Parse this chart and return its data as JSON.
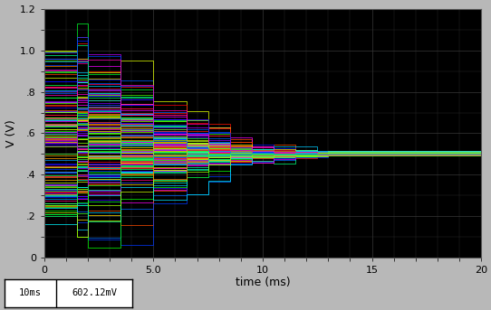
{
  "xlabel": "time (ms)",
  "ylabel": "V (V)",
  "xlim": [
    0,
    20
  ],
  "ylim": [
    0,
    1.2
  ],
  "xticks": [
    0,
    5.0,
    10,
    15,
    20
  ],
  "xtick_labels": [
    "0",
    "5.0",
    "10",
    "15",
    "20"
  ],
  "yticks": [
    0,
    0.2,
    0.4,
    0.6,
    0.8,
    1.0,
    1.2
  ],
  "ytick_labels": [
    "0",
    ".2",
    ".4",
    ".6",
    ".8",
    "1.0",
    "1.2"
  ],
  "background_color": "#000000",
  "fig_bg": "#b8b8b8",
  "n_traces": 150,
  "final_value": 0.5,
  "step_times": [
    1.5,
    2.0,
    3.5,
    5.0,
    6.5,
    7.5,
    8.5,
    9.5,
    10.5,
    11.5,
    12.5,
    13.0
  ],
  "spread_initial": 0.42,
  "spread_final": 0.01,
  "annotation_left": "10ms",
  "annotation_right": "602.12mV"
}
